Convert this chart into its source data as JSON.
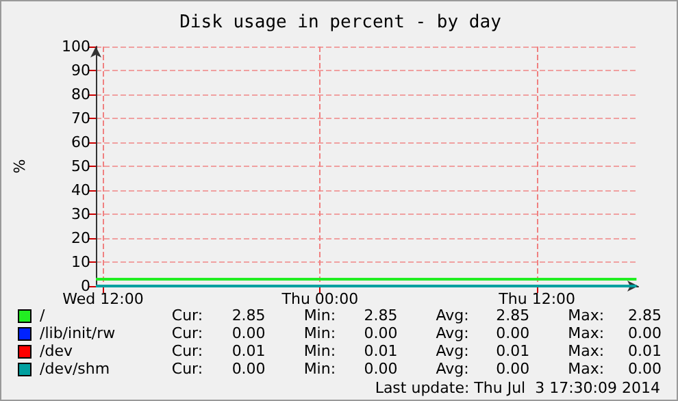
{
  "chart_data": {
    "type": "line",
    "title": "Disk usage in percent - by day",
    "ylabel": "%",
    "xlim": [
      "2014-07-02T11:36",
      "2014-07-03T17:36"
    ],
    "xticks": [
      {
        "value": "2014-07-02T12:00",
        "label": "Wed 12:00"
      },
      {
        "value": "2014-07-03T00:00",
        "label": "Thu 00:00"
      },
      {
        "value": "2014-07-03T12:00",
        "label": "Thu 12:00"
      }
    ],
    "ylim": [
      0,
      100
    ],
    "yticks": [
      0,
      10,
      20,
      30,
      40,
      50,
      60,
      70,
      80,
      90,
      100
    ],
    "x": [
      "2014-07-02T11:36",
      "2014-07-03T17:30"
    ],
    "series": [
      {
        "name": "/",
        "color": "#22ee22",
        "values": [
          2.85,
          2.85
        ]
      },
      {
        "name": "/lib/init/rw",
        "color": "#0022ff",
        "values": [
          null,
          null
        ]
      },
      {
        "name": "/dev",
        "color": "#ff0000",
        "values": [
          null,
          null
        ]
      },
      {
        "name": "/dev/shm",
        "color": "#00a0a0",
        "values": [
          0,
          0
        ]
      }
    ],
    "grid": true,
    "legend": "bottom",
    "marker": "none",
    "line_style": "solid",
    "annotations": [
      "Cur: 2.85 Min: 2.85 Avg: 2.85 Max: 2.85",
      "Cur: 0.00 Min: 0.00 Avg: 0.00 Max: 0.00",
      "Cur: 0.01 Min: 0.01 Avg: 0.01 Max: 0.01",
      "Cur: 0.00 Min: 0.00 Avg: 0.00 Max: 0.00",
      "Last update: Thu Jul  3 17:30:09 2014"
    ]
  }
}
